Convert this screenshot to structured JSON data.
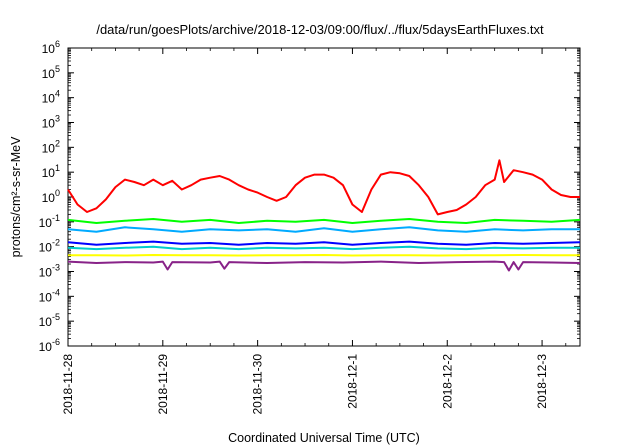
{
  "chart_data": {
    "type": "line",
    "title": "/data/run/goesPlots/archive/2018-12-03/09:00/flux/../flux/5daysEarthFluxes.txt",
    "xlabel": "Coordinated Universal Time (UTC)",
    "ylabel": "protons/cm²-s-sr-MeV",
    "y_scale": "log",
    "ylim_exponents": [
      -6,
      6
    ],
    "y_ticks": [
      {
        "base": "10",
        "exp": "-6"
      },
      {
        "base": "10",
        "exp": "-5"
      },
      {
        "base": "10",
        "exp": "-4"
      },
      {
        "base": "10",
        "exp": "-3"
      },
      {
        "base": "10",
        "exp": "-2"
      },
      {
        "base": "10",
        "exp": "-1"
      },
      {
        "base": "10",
        "exp": "0"
      },
      {
        "base": "10",
        "exp": "1"
      },
      {
        "base": "10",
        "exp": "2"
      },
      {
        "base": "10",
        "exp": "3"
      },
      {
        "base": "10",
        "exp": "4"
      },
      {
        "base": "10",
        "exp": "5"
      },
      {
        "base": "10",
        "exp": "6"
      }
    ],
    "x_ticks": [
      "2018-11-28",
      "2018-11-29",
      "2018-11-30",
      "2018-12-1",
      "2018-12-2",
      "2018-12-3"
    ],
    "xlim_days": [
      0,
      5.4
    ],
    "grid": false,
    "legend": "none",
    "series": [
      {
        "color": "#ff0000",
        "x": [
          0,
          0.1,
          0.2,
          0.3,
          0.4,
          0.5,
          0.6,
          0.7,
          0.8,
          0.9,
          1.0,
          1.1,
          1.2,
          1.3,
          1.4,
          1.5,
          1.6,
          1.7,
          1.8,
          1.9,
          2.0,
          2.1,
          2.2,
          2.3,
          2.4,
          2.5,
          2.6,
          2.7,
          2.8,
          2.9,
          3.0,
          3.1,
          3.2,
          3.3,
          3.4,
          3.5,
          3.6,
          3.7,
          3.8,
          3.9,
          4.0,
          4.1,
          4.2,
          4.3,
          4.4,
          4.5,
          4.55,
          4.6,
          4.7,
          4.8,
          4.9,
          5.0,
          5.1,
          5.2,
          5.3,
          5.4
        ],
        "y": [
          2.0,
          0.5,
          0.25,
          0.35,
          0.8,
          2.5,
          5.0,
          4.0,
          3.0,
          5.0,
          3.0,
          4.5,
          2.0,
          3.0,
          5.0,
          6.0,
          7.0,
          5.0,
          3.0,
          2.0,
          1.5,
          1.0,
          0.7,
          1.0,
          3.0,
          6.0,
          8.0,
          8.0,
          6.0,
          3.0,
          0.5,
          0.25,
          2.0,
          8.0,
          10.0,
          9.0,
          7.0,
          3.0,
          1.0,
          0.2,
          0.25,
          0.3,
          0.5,
          1.0,
          3.0,
          5.0,
          30.0,
          4.0,
          12.0,
          10.0,
          8.0,
          5.0,
          2.0,
          1.2,
          1.0,
          1.0
        ]
      },
      {
        "color": "#00ff00",
        "x": [
          0,
          0.3,
          0.6,
          0.9,
          1.2,
          1.5,
          1.8,
          2.1,
          2.4,
          2.7,
          3.0,
          3.3,
          3.6,
          3.9,
          4.2,
          4.5,
          4.8,
          5.1,
          5.4
        ],
        "y": [
          0.12,
          0.09,
          0.11,
          0.13,
          0.1,
          0.12,
          0.09,
          0.11,
          0.1,
          0.12,
          0.09,
          0.11,
          0.13,
          0.1,
          0.09,
          0.12,
          0.11,
          0.1,
          0.12
        ]
      },
      {
        "color": "#00aaff",
        "x": [
          0,
          0.3,
          0.6,
          0.9,
          1.2,
          1.5,
          1.8,
          2.1,
          2.4,
          2.7,
          3.0,
          3.3,
          3.6,
          3.9,
          4.2,
          4.5,
          4.8,
          5.1,
          5.4
        ],
        "y": [
          0.05,
          0.04,
          0.06,
          0.05,
          0.04,
          0.05,
          0.045,
          0.05,
          0.04,
          0.055,
          0.04,
          0.05,
          0.06,
          0.045,
          0.04,
          0.05,
          0.045,
          0.05,
          0.05
        ]
      },
      {
        "color": "#0000ff",
        "x": [
          0,
          0.3,
          0.6,
          0.9,
          1.2,
          1.5,
          1.8,
          2.1,
          2.4,
          2.7,
          3.0,
          3.3,
          3.6,
          3.9,
          4.2,
          4.5,
          4.8,
          5.1,
          5.4
        ],
        "y": [
          0.015,
          0.012,
          0.014,
          0.016,
          0.013,
          0.014,
          0.012,
          0.014,
          0.013,
          0.015,
          0.012,
          0.014,
          0.016,
          0.013,
          0.012,
          0.014,
          0.013,
          0.014,
          0.015
        ]
      },
      {
        "color": "#00cccc",
        "x": [
          0,
          0.3,
          0.6,
          0.9,
          1.2,
          1.5,
          1.8,
          2.1,
          2.4,
          2.7,
          3.0,
          3.3,
          3.6,
          3.9,
          4.2,
          4.5,
          4.8,
          5.1,
          5.4
        ],
        "y": [
          0.009,
          0.008,
          0.009,
          0.01,
          0.008,
          0.009,
          0.008,
          0.009,
          0.0085,
          0.009,
          0.008,
          0.009,
          0.01,
          0.0085,
          0.008,
          0.009,
          0.0085,
          0.009,
          0.009
        ]
      },
      {
        "color": "#ffff00",
        "x": [
          0,
          0.3,
          0.6,
          0.9,
          1.2,
          1.5,
          1.8,
          2.1,
          2.4,
          2.7,
          3.0,
          3.3,
          3.6,
          3.9,
          4.2,
          4.5,
          4.8,
          5.1,
          5.4
        ],
        "y": [
          0.0045,
          0.0045,
          0.0044,
          0.0046,
          0.0045,
          0.0045,
          0.0044,
          0.0045,
          0.0045,
          0.0046,
          0.0044,
          0.0045,
          0.0045,
          0.0044,
          0.0045,
          0.0045,
          0.0046,
          0.0045,
          0.0045
        ]
      },
      {
        "color": "#882288",
        "x": [
          0,
          0.3,
          0.6,
          0.9,
          1.0,
          1.05,
          1.1,
          1.5,
          1.6,
          1.65,
          1.7,
          2.1,
          2.5,
          2.9,
          3.3,
          3.7,
          4.1,
          4.5,
          4.6,
          4.65,
          4.7,
          4.75,
          4.8,
          5.1,
          5.4
        ],
        "y": [
          0.0025,
          0.0022,
          0.0024,
          0.0023,
          0.0025,
          0.0012,
          0.0024,
          0.0023,
          0.0025,
          0.0013,
          0.0024,
          0.0022,
          0.0024,
          0.0023,
          0.0025,
          0.0022,
          0.0024,
          0.0025,
          0.0024,
          0.0011,
          0.0024,
          0.0012,
          0.0024,
          0.0023,
          0.0022
        ]
      }
    ]
  }
}
